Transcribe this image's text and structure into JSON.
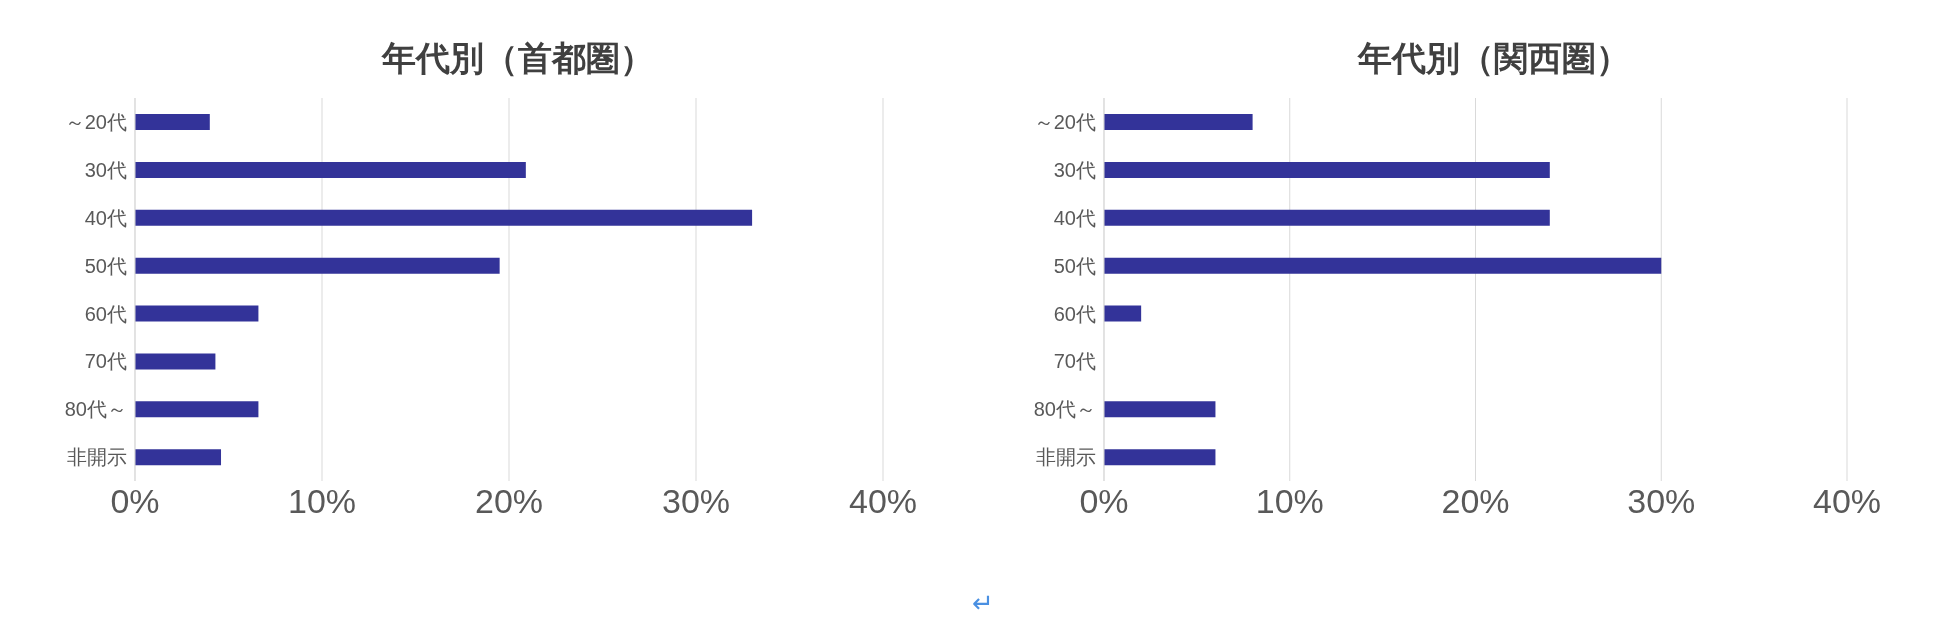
{
  "chart_data": [
    {
      "type": "bar",
      "orientation": "horizontal",
      "title": "年代別（首都圏）",
      "categories": [
        "～20代",
        "30代",
        "40代",
        "50代",
        "60代",
        "70代",
        "80代～",
        "非開示"
      ],
      "values": [
        4.0,
        20.9,
        33.0,
        19.5,
        6.6,
        4.3,
        6.6,
        4.6
      ],
      "color": "#333399",
      "xlim": [
        0,
        40
      ],
      "xticks": [
        {
          "value": 0,
          "label": "0%"
        },
        {
          "value": 10,
          "label": "10%"
        },
        {
          "value": 20,
          "label": "20%"
        },
        {
          "value": 30,
          "label": "30%"
        },
        {
          "value": 40,
          "label": "40%"
        }
      ],
      "grid": "x",
      "annotations": [
        "↵"
      ]
    },
    {
      "type": "bar",
      "orientation": "horizontal",
      "title": "年代別（関西圏）",
      "categories": [
        "～20代",
        "30代",
        "40代",
        "50代",
        "60代",
        "70代",
        "80代～",
        "非開示"
      ],
      "values": [
        8.0,
        24.0,
        24.0,
        30.0,
        2.0,
        0,
        6.0,
        6.0
      ],
      "color": "#333399",
      "xlim": [
        0,
        40
      ],
      "xticks": [
        {
          "value": 0,
          "label": "0%"
        },
        {
          "value": 10,
          "label": "10%"
        },
        {
          "value": 20,
          "label": "20%"
        },
        {
          "value": 30,
          "label": "30%"
        },
        {
          "value": 40,
          "label": "40%"
        }
      ],
      "grid": "x"
    }
  ]
}
